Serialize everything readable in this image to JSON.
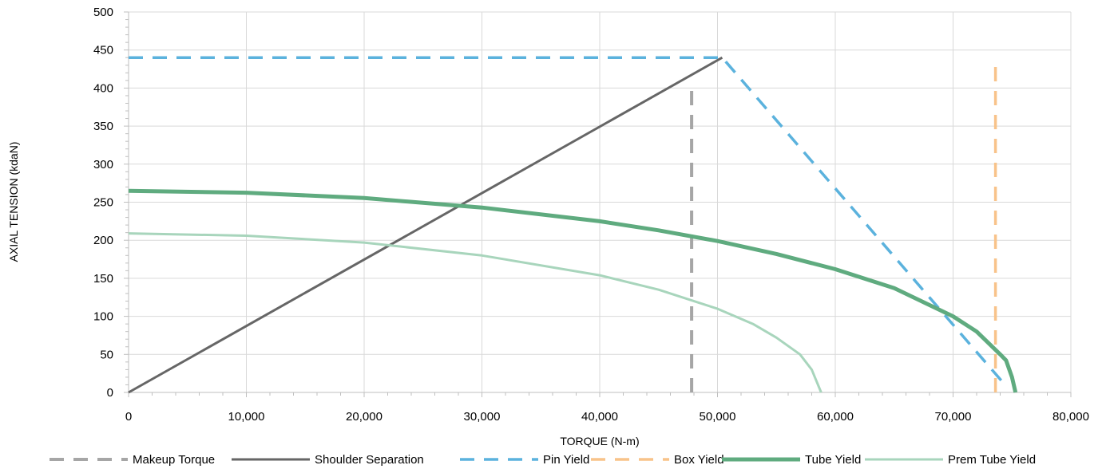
{
  "chart_data": {
    "type": "line",
    "title": "",
    "xlabel": "TORQUE (N-m)",
    "ylabel": "AXIAL TENSION (kdaN)",
    "xlim": [
      0,
      80000
    ],
    "ylim": [
      0,
      500
    ],
    "x_ticks": [
      "0",
      "10,000",
      "20,000",
      "30,000",
      "40,000",
      "50,000",
      "60,000",
      "70,000",
      "80,000"
    ],
    "y_ticks": [
      "0",
      "50",
      "100",
      "150",
      "200",
      "250",
      "300",
      "350",
      "400",
      "450",
      "500"
    ],
    "grid": true,
    "legend_position": "bottom",
    "series": [
      {
        "name": "Makeup Torque",
        "color": "#a6a6a6",
        "style": "dashed",
        "points": [
          [
            47800,
            0
          ],
          [
            47800,
            398
          ]
        ]
      },
      {
        "name": "Shoulder Separation",
        "color": "#666666",
        "style": "solid",
        "points": [
          [
            0,
            0
          ],
          [
            50400,
            440
          ]
        ]
      },
      {
        "name": "Pin Yield",
        "color": "#5bb2dd",
        "style": "dashed",
        "points": [
          [
            0,
            440
          ],
          [
            50400,
            440
          ],
          [
            74300,
            12
          ]
        ]
      },
      {
        "name": "Box Yield",
        "color": "#f8c38a",
        "style": "dashed",
        "points": [
          [
            73600,
            0
          ],
          [
            73600,
            436
          ]
        ]
      },
      {
        "name": "Tube Yield",
        "color": "#5fab7f",
        "style": "solid",
        "points": [
          [
            0,
            265
          ],
          [
            10000,
            262.5
          ],
          [
            20000,
            255.5
          ],
          [
            30000,
            243
          ],
          [
            40000,
            225
          ],
          [
            45000,
            213
          ],
          [
            50000,
            199
          ],
          [
            55000,
            182
          ],
          [
            60000,
            162
          ],
          [
            65000,
            137
          ],
          [
            70000,
            100
          ],
          [
            72000,
            80
          ],
          [
            74000,
            50
          ],
          [
            74500,
            42
          ],
          [
            75000,
            20
          ],
          [
            75300,
            0
          ]
        ]
      },
      {
        "name": "Prem Tube Yield",
        "color": "#a8d5bc",
        "style": "solid",
        "points": [
          [
            0,
            209
          ],
          [
            10000,
            206
          ],
          [
            20000,
            197
          ],
          [
            30000,
            180
          ],
          [
            40000,
            154
          ],
          [
            45000,
            135
          ],
          [
            50000,
            110
          ],
          [
            53000,
            90
          ],
          [
            55000,
            72
          ],
          [
            57000,
            50
          ],
          [
            58000,
            30
          ],
          [
            58800,
            0
          ]
        ]
      }
    ]
  }
}
